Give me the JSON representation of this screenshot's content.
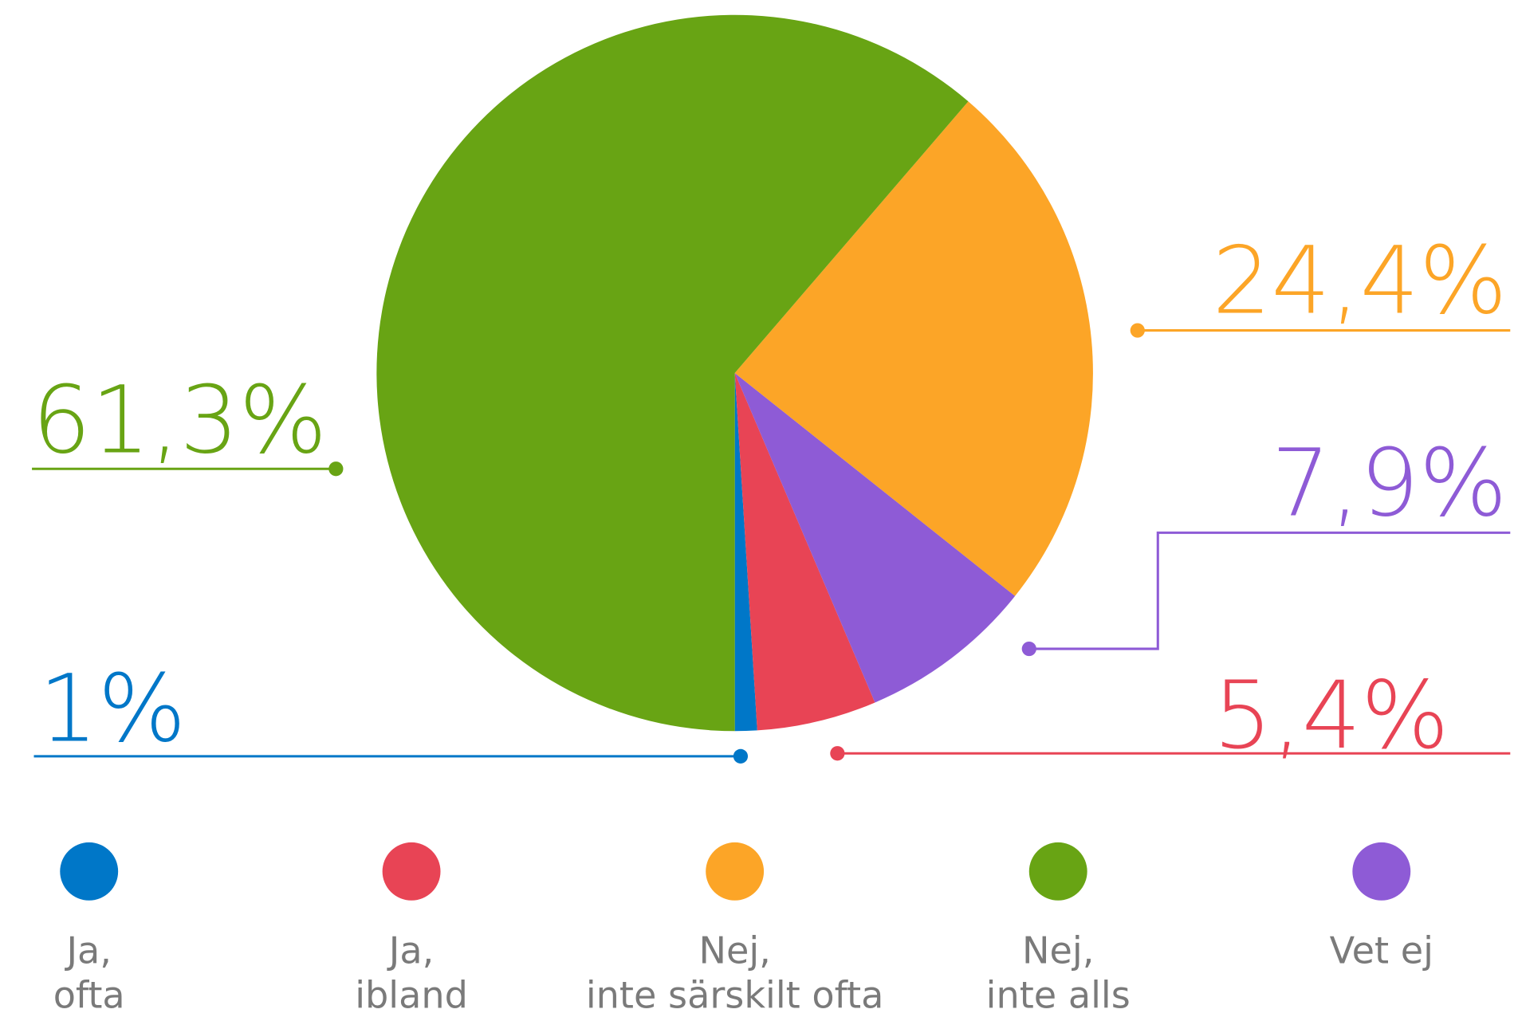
{
  "chart_data": {
    "type": "pie",
    "values": [
      1,
      5.4,
      7.9,
      24.4,
      61.3
    ],
    "value_labels": [
      "1%",
      "5,4%",
      "7,9%",
      "24,4%",
      "61,3%"
    ],
    "colors": [
      "#0077c8",
      "#e84455",
      "#8e5bd6",
      "#fca527",
      "#68a414"
    ],
    "legend": [
      {
        "label": [
          "Ja,",
          "ofta"
        ],
        "color": "#0077c8"
      },
      {
        "label": [
          "Ja,",
          "ibland"
        ],
        "color": "#e84455"
      },
      {
        "label": [
          "Nej,",
          "inte särskilt ofta"
        ],
        "color": "#fca527"
      },
      {
        "label": [
          "Nej,",
          "inte alls"
        ],
        "color": "#68a414"
      },
      {
        "label": [
          "Vet ej"
        ],
        "color": "#8e5bd6"
      }
    ]
  }
}
